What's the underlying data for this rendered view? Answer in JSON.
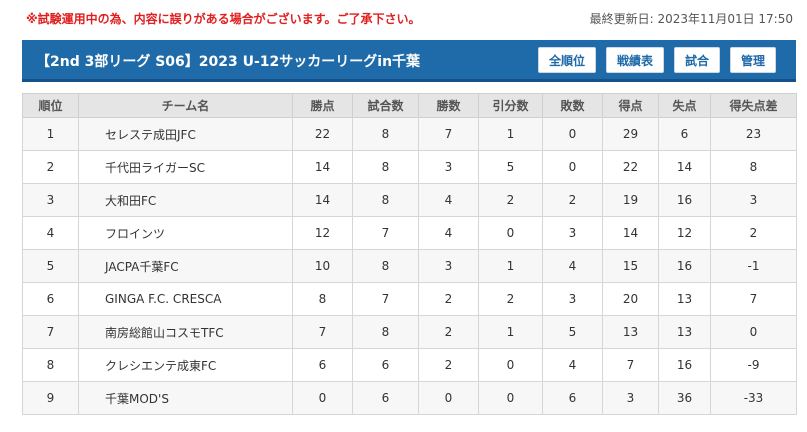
{
  "notice": "※試験運用中の為、内容に誤りがある場合がございます。ご了承下さい。",
  "updated": "最終更新日: 2023年11月01日 17:50",
  "title": "【2nd 3部リーグ S06】2023 U-12サッカーリーグin千葉",
  "buttons": {
    "all_rank": "全順位",
    "results": "戦績表",
    "matches": "試合",
    "admin": "管理"
  },
  "columns": [
    "順位",
    "チーム名",
    "勝点",
    "試合数",
    "勝数",
    "引分数",
    "敗数",
    "得点",
    "失点",
    "得失点差"
  ],
  "rows": [
    [
      "1",
      "セレステ成田JFC",
      "22",
      "8",
      "7",
      "1",
      "0",
      "29",
      "6",
      "23"
    ],
    [
      "2",
      "千代田ライガーSC",
      "14",
      "8",
      "3",
      "5",
      "0",
      "22",
      "14",
      "8"
    ],
    [
      "3",
      "大和田FC",
      "14",
      "8",
      "4",
      "2",
      "2",
      "19",
      "16",
      "3"
    ],
    [
      "4",
      "フロインツ",
      "12",
      "7",
      "4",
      "0",
      "3",
      "14",
      "12",
      "2"
    ],
    [
      "5",
      "JACPA千葉FC",
      "10",
      "8",
      "3",
      "1",
      "4",
      "15",
      "16",
      "-1"
    ],
    [
      "6",
      "GINGA F.C. CRESCA",
      "8",
      "7",
      "2",
      "2",
      "3",
      "20",
      "13",
      "7"
    ],
    [
      "7",
      "南房総館山コスモTFC",
      "7",
      "8",
      "2",
      "1",
      "5",
      "13",
      "13",
      "0"
    ],
    [
      "8",
      "クレシエンテ成東FC",
      "6",
      "6",
      "2",
      "0",
      "4",
      "7",
      "16",
      "-9"
    ],
    [
      "9",
      "千葉MOD'S",
      "0",
      "6",
      "0",
      "0",
      "6",
      "3",
      "36",
      "-33"
    ]
  ]
}
